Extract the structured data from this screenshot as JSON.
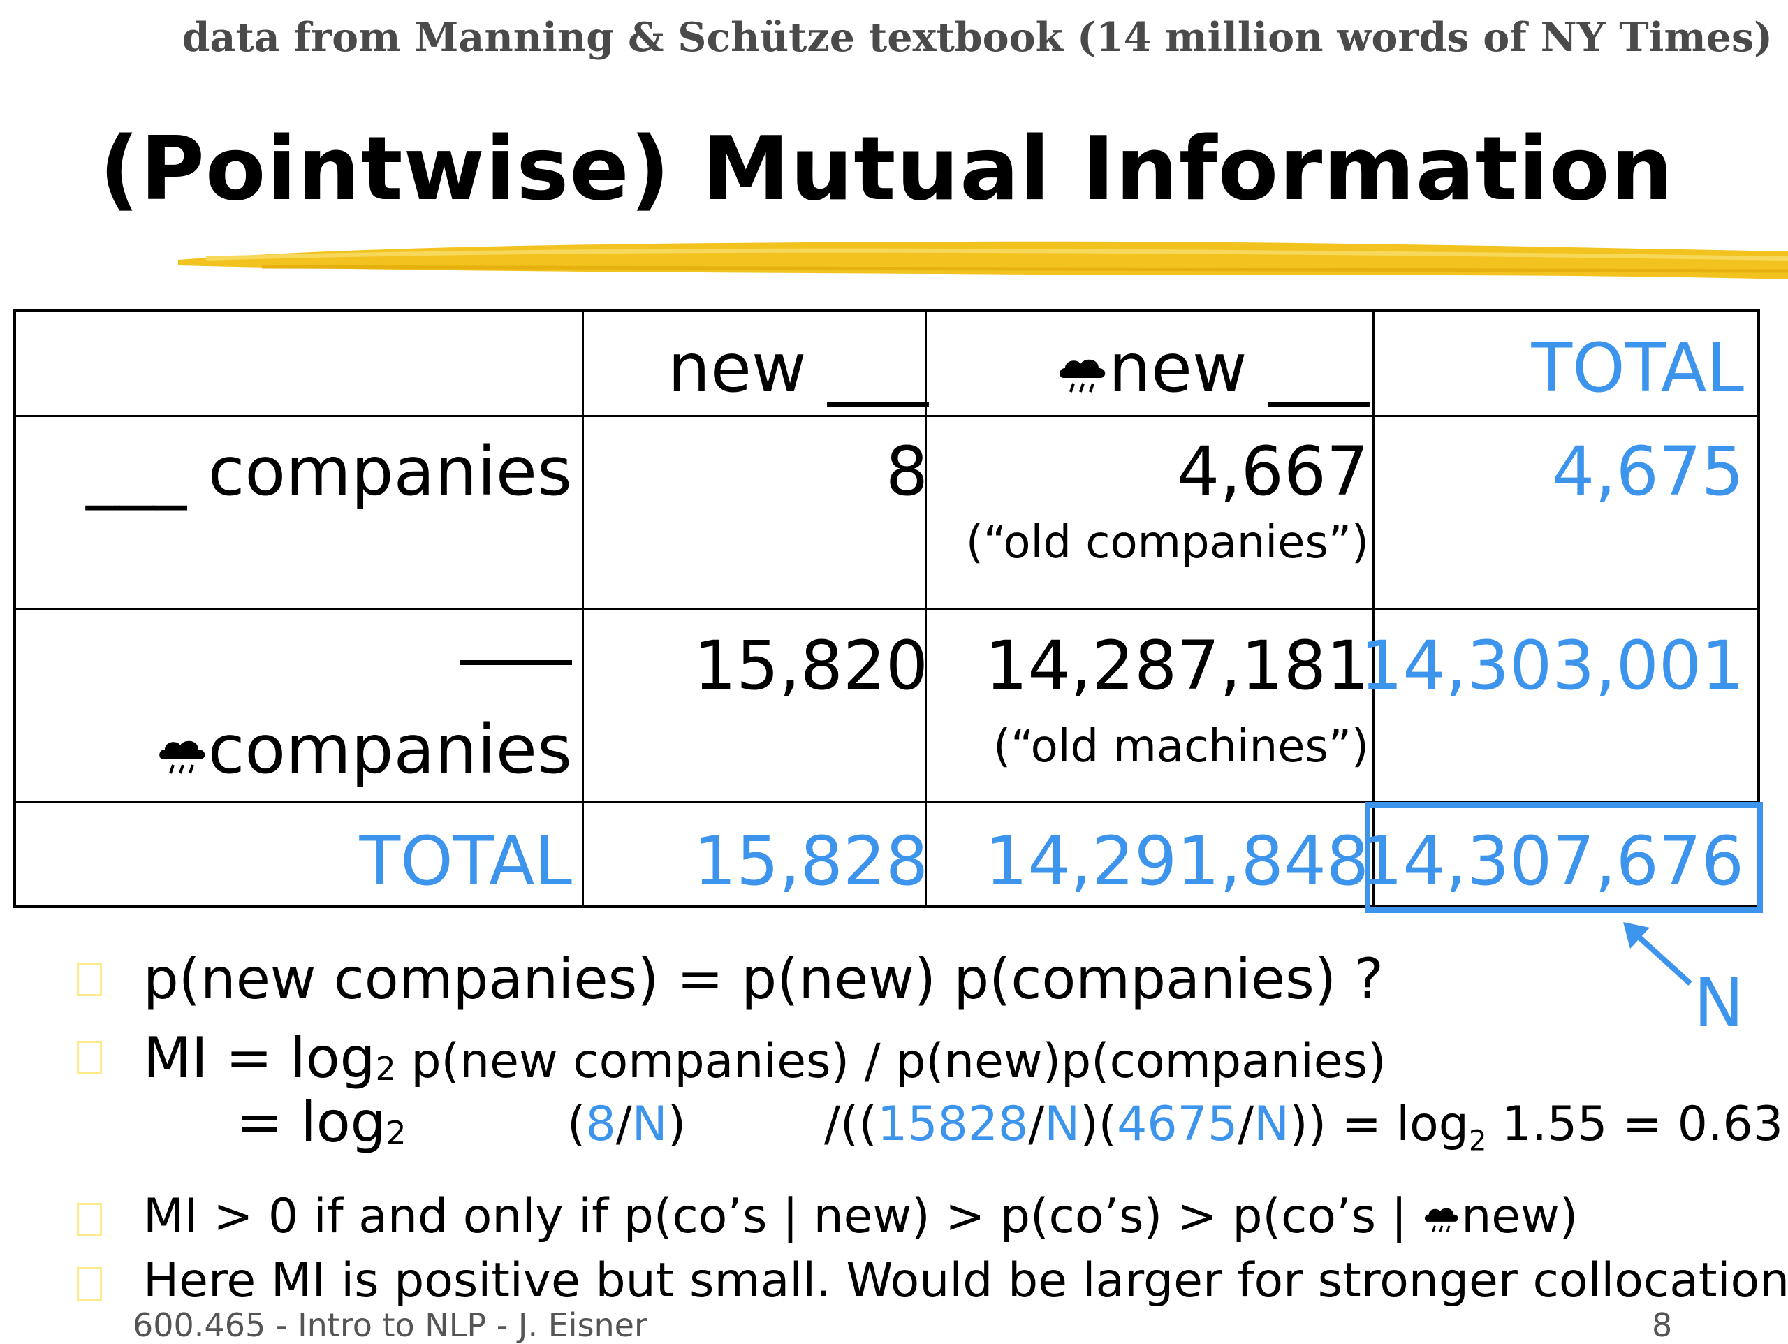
{
  "source_note": "data from Manning & Schütze textbook (14 million words of NY Times)",
  "title": "(Pointwise) Mutual Information",
  "table": {
    "col_headers": [
      "new ___",
      "new ___",
      "TOTAL"
    ],
    "row1_label": "___ companies",
    "row2_label": "companies",
    "total_label": "TOTAL",
    "row1": [
      "8",
      "4,667",
      "4,675"
    ],
    "row1_note": "(“old companies”)",
    "row2": [
      "15,820",
      "14,287,181",
      "14,303,001"
    ],
    "row2_note": "(“old machines”)",
    "totals": [
      "15,828",
      "14,291,848",
      "14,307,676"
    ],
    "n_label": "N"
  },
  "colors": {
    "accent": "#3d94ec",
    "highlight": "#f2c21f",
    "text": "#000000"
  },
  "icons": [
    "rain-cloud-icon (negation)",
    "arrow-icon"
  ],
  "bullets": {
    "b1": "p(new companies) = p(new) p(companies) ?",
    "b2_mi": "MI  =  log",
    "b2_sub": "2",
    "b2_rest": " p(new companies) /  p(new)p(companies)",
    "b3_eq": "=  log",
    "b3_sub": "2",
    "b3_f1": [
      "(",
      "8",
      "/",
      "N",
      ")"
    ],
    "b3_f2": [
      "/((",
      "15828",
      "/",
      "N",
      ")(",
      "4675",
      "/",
      "N",
      "))"
    ],
    "b3_tail": " = log",
    "b3_tail_sub": "2",
    "b3_tail_rest": " 1.55 = 0.63",
    "b4_a": "MI > 0   if and only if   p(co’s | new) > p(co’s) > p(co’s |",
    "b4_b": "new)",
    "b5": "Here MI is positive but small.  Would be larger for stronger collocations."
  },
  "footer": {
    "left": "600.465 - Intro to NLP - J. Eisner",
    "page": "8"
  }
}
